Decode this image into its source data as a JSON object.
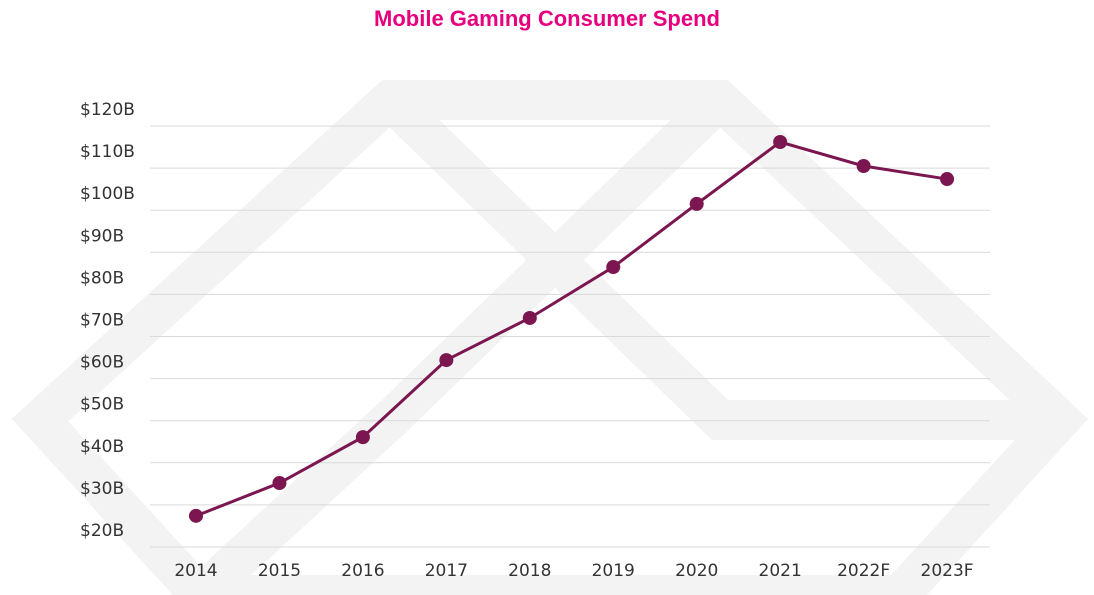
{
  "chart_data": {
    "type": "line",
    "title": "Mobile Gaming Consumer Spend",
    "categories": [
      "2014",
      "2015",
      "2016",
      "2017",
      "2018",
      "2019",
      "2020",
      "2021",
      "2022F",
      "2023F"
    ],
    "series": [
      {
        "name": "Consumer Spend",
        "color": "#7b1650",
        "values": [
          27.4,
          35.2,
          46.1,
          64.4,
          74.4,
          86.5,
          101.5,
          116.2,
          110.5,
          107.4
        ]
      }
    ],
    "ylim": [
      20,
      120
    ],
    "yticks": [
      {
        "value": 20,
        "label": "$20B"
      },
      {
        "value": 30,
        "label": "$30B"
      },
      {
        "value": 40,
        "label": "$40B"
      },
      {
        "value": 50,
        "label": "$50B"
      },
      {
        "value": 60,
        "label": "$60B"
      },
      {
        "value": 70,
        "label": "$70B"
      },
      {
        "value": 80,
        "label": "$80B"
      },
      {
        "value": 90,
        "label": "$90B"
      },
      {
        "value": 100,
        "label": "$100B"
      },
      {
        "value": 110,
        "label": "$110B"
      },
      {
        "value": 120,
        "label": "$120B"
      }
    ],
    "grid": true
  }
}
